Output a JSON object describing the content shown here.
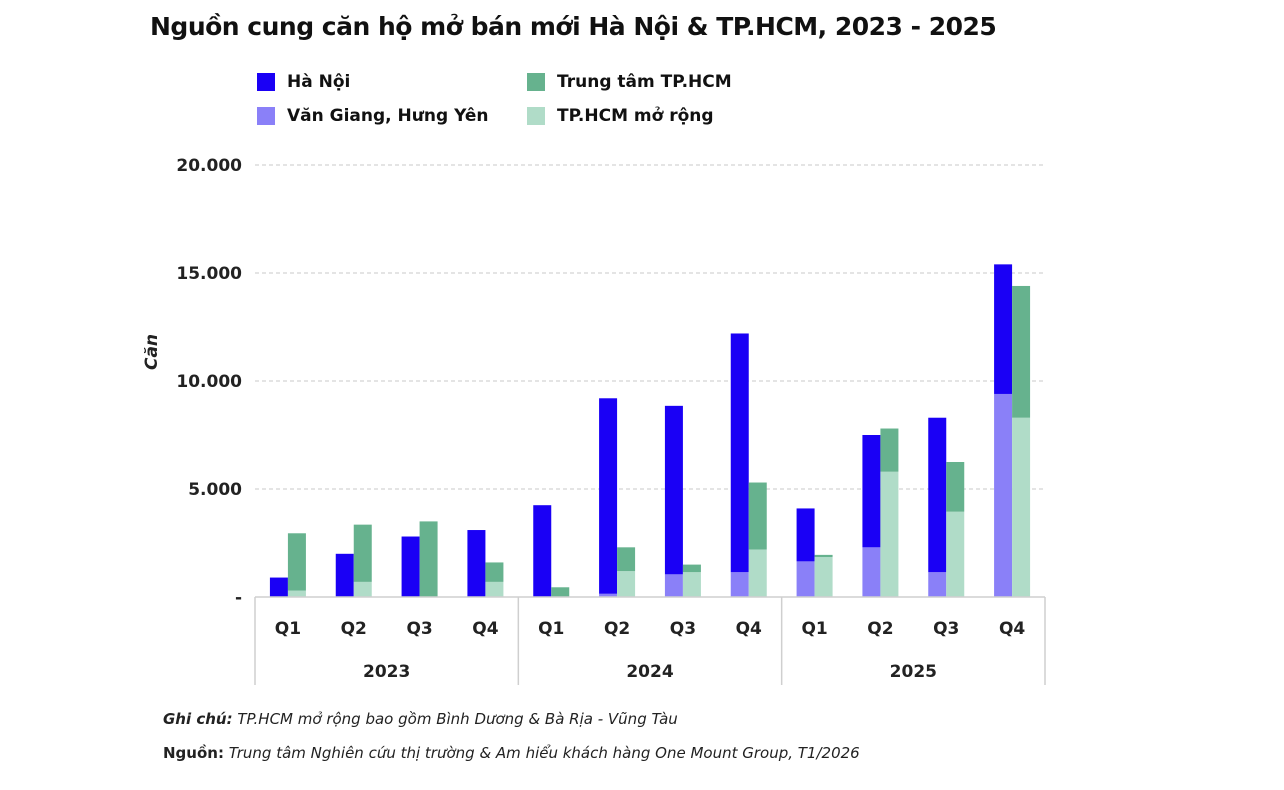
{
  "title": "Nguồn cung căn hộ mở bán mới Hà Nội & TP.HCM, 2023 - 2025",
  "chart_data": {
    "type": "bar",
    "stacked": true,
    "title": "Nguồn cung căn hộ mở bán mới Hà Nội & TP.HCM, 2023 - 2025",
    "ylabel": "Căn",
    "xlabel": "",
    "ylim": [
      0,
      20000
    ],
    "yticks": [
      0,
      5000,
      10000,
      15000,
      20000
    ],
    "ytick_labels": [
      "-",
      "5.000",
      "10.000",
      "15.000",
      "20.000"
    ],
    "grid": true,
    "legend_position": "top",
    "groups": [
      "2023",
      "2024",
      "2025"
    ],
    "categories": [
      "Q1",
      "Q2",
      "Q3",
      "Q4",
      "Q1",
      "Q2",
      "Q3",
      "Q4",
      "Q1",
      "Q2",
      "Q3",
      "Q4"
    ],
    "stacks": [
      {
        "stack": "Hà Nội",
        "series": [
          {
            "name": "Văn Giang, Hưng Yên",
            "color": "#8a80f8",
            "values": [
              0,
              0,
              0,
              0,
              0,
              150,
              1050,
              1150,
              1650,
              2300,
              1150,
              9400
            ]
          },
          {
            "name": "Hà Nội",
            "color": "#1a00f5",
            "values": [
              900,
              2000,
              2800,
              3100,
              4250,
              9050,
              7800,
              11050,
              2450,
              5200,
              7150,
              6000
            ]
          }
        ]
      },
      {
        "stack": "TP.HCM",
        "series": [
          {
            "name": "TP.HCM mở rộng",
            "color": "#b0dcc8",
            "values": [
              300,
              700,
              0,
              700,
              0,
              1200,
              1150,
              2200,
              1850,
              5800,
              3950,
              8300
            ]
          },
          {
            "name": "Trung tâm TP.HCM",
            "color": "#66b28e",
            "values": [
              2650,
              2650,
              3500,
              900,
              450,
              1100,
              350,
              3100,
              100,
              2000,
              2300,
              6100
            ]
          }
        ]
      }
    ]
  },
  "legend": [
    {
      "label": "Hà Nội",
      "color": "#1a00f5"
    },
    {
      "label": "Trung tâm TP.HCM",
      "color": "#66b28e"
    },
    {
      "label": "Văn Giang, Hưng Yên",
      "color": "#8a80f8"
    },
    {
      "label": "TP.HCM mở rộng",
      "color": "#b0dcc8"
    }
  ],
  "notes": {
    "note_label": "Ghi chú:",
    "note_text": "TP.HCM mở rộng bao gồm Bình Dương & Bà Rịa - Vũng Tàu",
    "source_label": "Nguồn:",
    "source_text": "Trung tâm Nghiên cứu thị trường & Am hiểu khách hàng One Mount Group, T1/2026"
  }
}
